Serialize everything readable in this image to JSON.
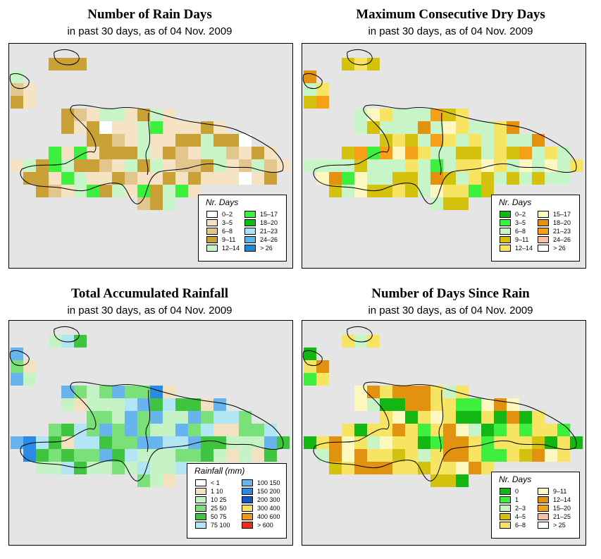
{
  "panels": [
    {
      "id": "rain-days",
      "title": "Number of Rain Days",
      "subtitle": "in past 30 days, as of  04 Nov. 2009",
      "legend": {
        "title": "Nr. Days",
        "items": [
          {
            "label": "0–2",
            "color": "#ffffff"
          },
          {
            "label": "3–5",
            "color": "#f5e3c3"
          },
          {
            "label": "6–8",
            "color": "#e3c68e"
          },
          {
            "label": "9–11",
            "color": "#c9a136"
          },
          {
            "label": "12–14",
            "color": "#c8f5c8"
          },
          {
            "label": "15–17",
            "color": "#3ef03e"
          },
          {
            "label": "18–20",
            "color": "#12b812"
          },
          {
            "label": "21–23",
            "color": "#a9e3f7"
          },
          {
            "label": "24–26",
            "color": "#57b6ef"
          },
          {
            "label": "> 26",
            "color": "#1a8ad8"
          }
        ]
      }
    },
    {
      "id": "dry-days",
      "title": "Maximum Consecutive Dry Days",
      "subtitle": "in past 30 days, as of  04 Nov. 2009",
      "legend": {
        "title": "Nr. Days",
        "items": [
          {
            "label": "0–2",
            "color": "#14b614"
          },
          {
            "label": "3–5",
            "color": "#3ef03e"
          },
          {
            "label": "6–8",
            "color": "#c8f5c8"
          },
          {
            "label": "9–11",
            "color": "#d4c20f"
          },
          {
            "label": "12–14",
            "color": "#f7e463"
          },
          {
            "label": "15–17",
            "color": "#fdf7c0"
          },
          {
            "label": "18–20",
            "color": "#e2920f"
          },
          {
            "label": "21–23",
            "color": "#f6a017"
          },
          {
            "label": "24–26",
            "color": "#f7c0a0"
          },
          {
            "label": "> 26",
            "color": "#ffffff"
          }
        ]
      }
    },
    {
      "id": "rainfall",
      "title": "Total Accumulated Rainfall",
      "subtitle": "in past 30 days, as of  04 Nov. 2009",
      "legend": {
        "title": "Rainfall (mm)",
        "items": [
          {
            "label": "< 1",
            "color": "#ffffff"
          },
          {
            "label": "1   10",
            "color": "#f3e1c0"
          },
          {
            "label": "10   25",
            "color": "#c5f3c5"
          },
          {
            "label": "25   50",
            "color": "#7ae07a"
          },
          {
            "label": "50   75",
            "color": "#3ec43e"
          },
          {
            "label": "75   100",
            "color": "#b2e6f4"
          },
          {
            "label": "100   150",
            "color": "#68b4ee"
          },
          {
            "label": "150   200",
            "color": "#2a8ae4"
          },
          {
            "label": "200   300",
            "color": "#1257d0"
          },
          {
            "label": "300   400",
            "color": "#f7e161"
          },
          {
            "label": "400   600",
            "color": "#ef9a14"
          },
          {
            "label": "> 600",
            "color": "#ee2b1c"
          }
        ]
      }
    },
    {
      "id": "days-since-rain",
      "title": "Number of Days Since Rain",
      "subtitle": "in past 30 days, as of  04 Nov. 2009",
      "legend": {
        "title": "Nr. Days",
        "items": [
          {
            "label": "0",
            "color": "#14b614"
          },
          {
            "label": "1",
            "color": "#3ef03e"
          },
          {
            "label": "2–3",
            "color": "#c8f5c8"
          },
          {
            "label": "4–5",
            "color": "#d4c20f"
          },
          {
            "label": "6–8",
            "color": "#f7e463"
          },
          {
            "label": "9–11",
            "color": "#fdf7c0"
          },
          {
            "label": "12–14",
            "color": "#e2920f"
          },
          {
            "label": "15–20",
            "color": "#f6a017"
          },
          {
            "label": "21–25",
            "color": "#f7c0a0"
          },
          {
            "label": "> 25",
            "color": "#ffffff"
          }
        ]
      }
    }
  ]
}
